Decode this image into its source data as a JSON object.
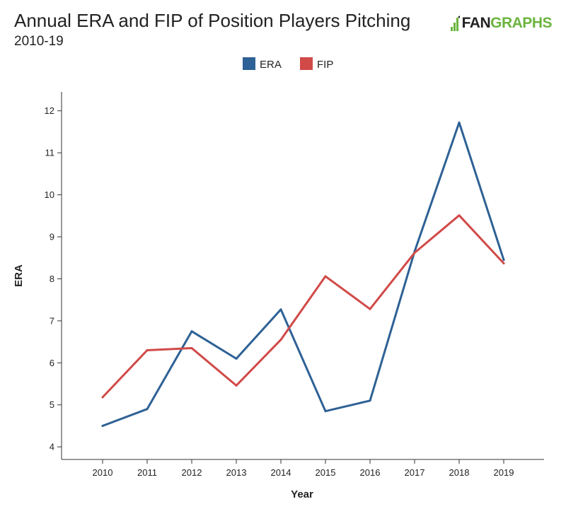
{
  "header": {
    "title": "Annual ERA and FIP of Position Players Pitching",
    "subtitle": "2010-19",
    "logo_fan": "FAN",
    "logo_graphs": "GRAPHS"
  },
  "colors": {
    "era": "#2e6195",
    "fip": "#d04a48",
    "logo_green": "#6bb43f"
  },
  "chart_data": {
    "type": "line",
    "title": "Annual ERA and FIP of Position Players Pitching",
    "subtitle": "2010-19",
    "xlabel": "Year",
    "ylabel": "ERA",
    "x": [
      "2010",
      "2011",
      "2012",
      "2013",
      "2014",
      "2015",
      "2016",
      "2017",
      "2018",
      "2019"
    ],
    "ylim": [
      3.7,
      12.45
    ],
    "yticks": [
      4,
      5,
      6,
      7,
      8,
      9,
      10,
      11,
      12
    ],
    "legend_position": "top-center",
    "grid": false,
    "series": [
      {
        "name": "ERA",
        "color": "#2e6195",
        "values": [
          4.5,
          4.9,
          6.75,
          6.1,
          7.27,
          4.85,
          5.1,
          8.65,
          11.72,
          8.45
        ]
      },
      {
        "name": "FIP",
        "color": "#d04a48",
        "values": [
          5.18,
          6.3,
          6.35,
          5.46,
          6.55,
          8.06,
          7.28,
          8.62,
          9.51,
          8.37
        ]
      }
    ]
  }
}
